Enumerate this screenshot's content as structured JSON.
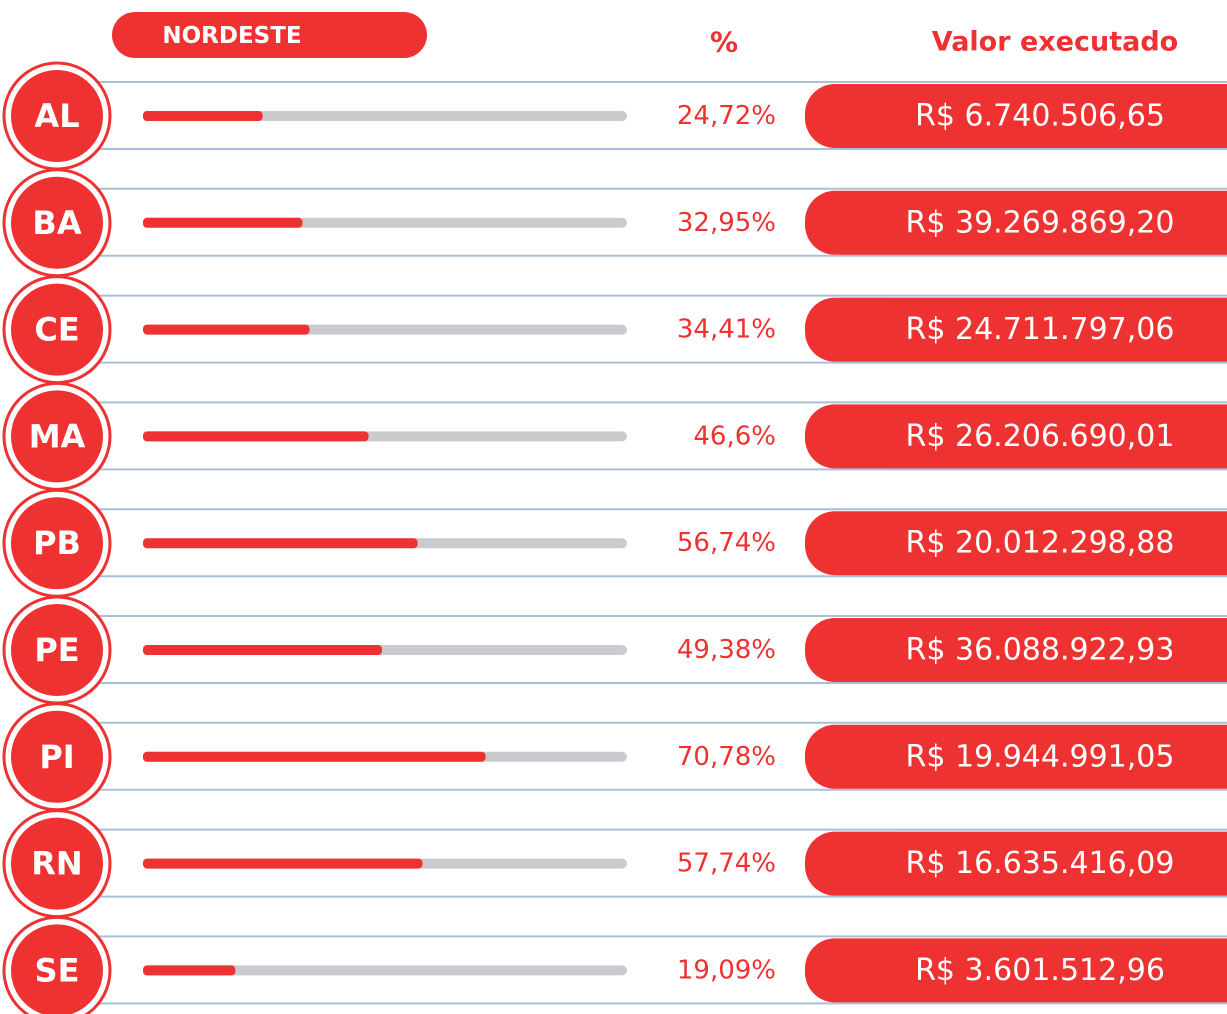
{
  "chart_data": {
    "type": "bar",
    "orientation": "horizontal",
    "title": "NORDESTE",
    "value_header": "%",
    "amount_header": "Valor executado",
    "categories": [
      "AL",
      "BA",
      "CE",
      "MA",
      "PB",
      "PE",
      "PI",
      "RN",
      "SE"
    ],
    "values": [
      24.72,
      32.95,
      34.41,
      46.6,
      56.74,
      49.38,
      70.78,
      57.74,
      19.09
    ],
    "value_labels": [
      "24,72%",
      "32,95%",
      "34,41%",
      "46,6%",
      "56,74%",
      "49,38%",
      "70,78%",
      "57,74%",
      "19,09%"
    ],
    "amounts": [
      "R$ 6.740.506,65",
      "R$ 39.269.869,20",
      "R$ 24.711.797,06",
      "R$ 26.206.690,01",
      "R$ 20.012.298,88",
      "R$ 36.088.922,93",
      "R$ 19.944.991,05",
      "R$ 16.635.416,09",
      "R$ 3.601.512,96"
    ],
    "xlim": [
      0,
      100
    ],
    "color": "#ee3131",
    "track_color": "#cacbcf"
  }
}
